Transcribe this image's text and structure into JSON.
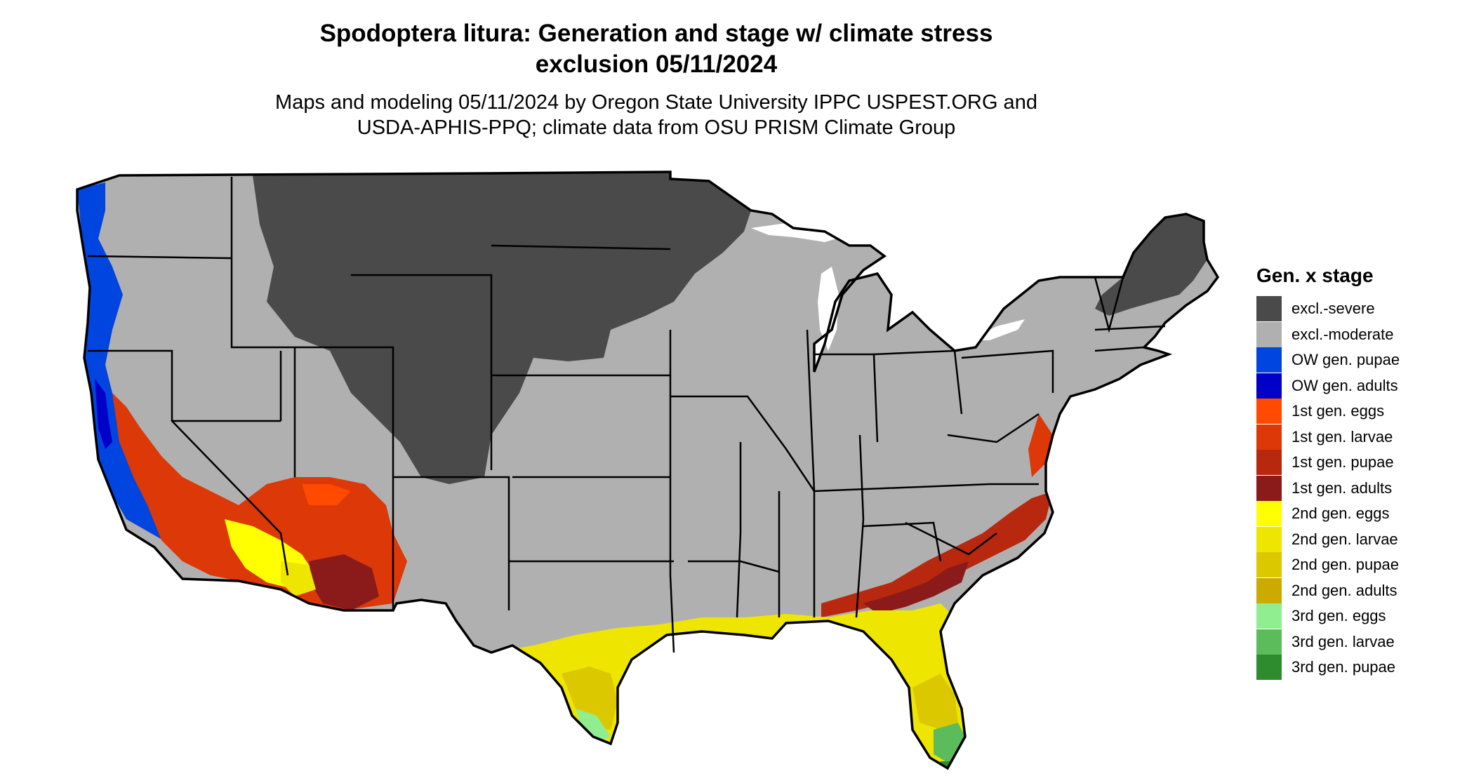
{
  "title": {
    "line1": "Spodoptera litura: Generation and stage w/ climate stress",
    "line2": "exclusion 05/11/2024"
  },
  "subtitle": {
    "line1": "Maps and modeling 05/11/2024 by Oregon State University IPPC USPEST.ORG and",
    "line2": "USDA-APHIS-PPQ; climate data from OSU PRISM Climate Group"
  },
  "legend": {
    "title": "Gen. x stage",
    "items": [
      {
        "label": "excl.-severe",
        "color": "#4a4a4a"
      },
      {
        "label": "excl.-moderate",
        "color": "#b0b0b0"
      },
      {
        "label": "OW gen. pupae",
        "color": "#0045e0"
      },
      {
        "label": "OW gen. adults",
        "color": "#0000c8"
      },
      {
        "label": "1st gen. eggs",
        "color": "#ff4a00"
      },
      {
        "label": "1st gen. larvae",
        "color": "#dc3808"
      },
      {
        "label": "1st gen. pupae",
        "color": "#b8280e"
      },
      {
        "label": "1st gen. adults",
        "color": "#8b1a1a"
      },
      {
        "label": "2nd gen. eggs",
        "color": "#ffff00"
      },
      {
        "label": "2nd gen. larvae",
        "color": "#eee600"
      },
      {
        "label": "2nd gen. pupae",
        "color": "#dcc800"
      },
      {
        "label": "2nd gen. adults",
        "color": "#ccaa00"
      },
      {
        "label": "3rd gen. eggs",
        "color": "#90ee90"
      },
      {
        "label": "3rd gen. larvae",
        "color": "#5cbc5c"
      },
      {
        "label": "3rd gen. pupae",
        "color": "#2e8b2e"
      }
    ]
  },
  "map": {
    "region": "conterminous-us",
    "border_color": "#000000"
  }
}
